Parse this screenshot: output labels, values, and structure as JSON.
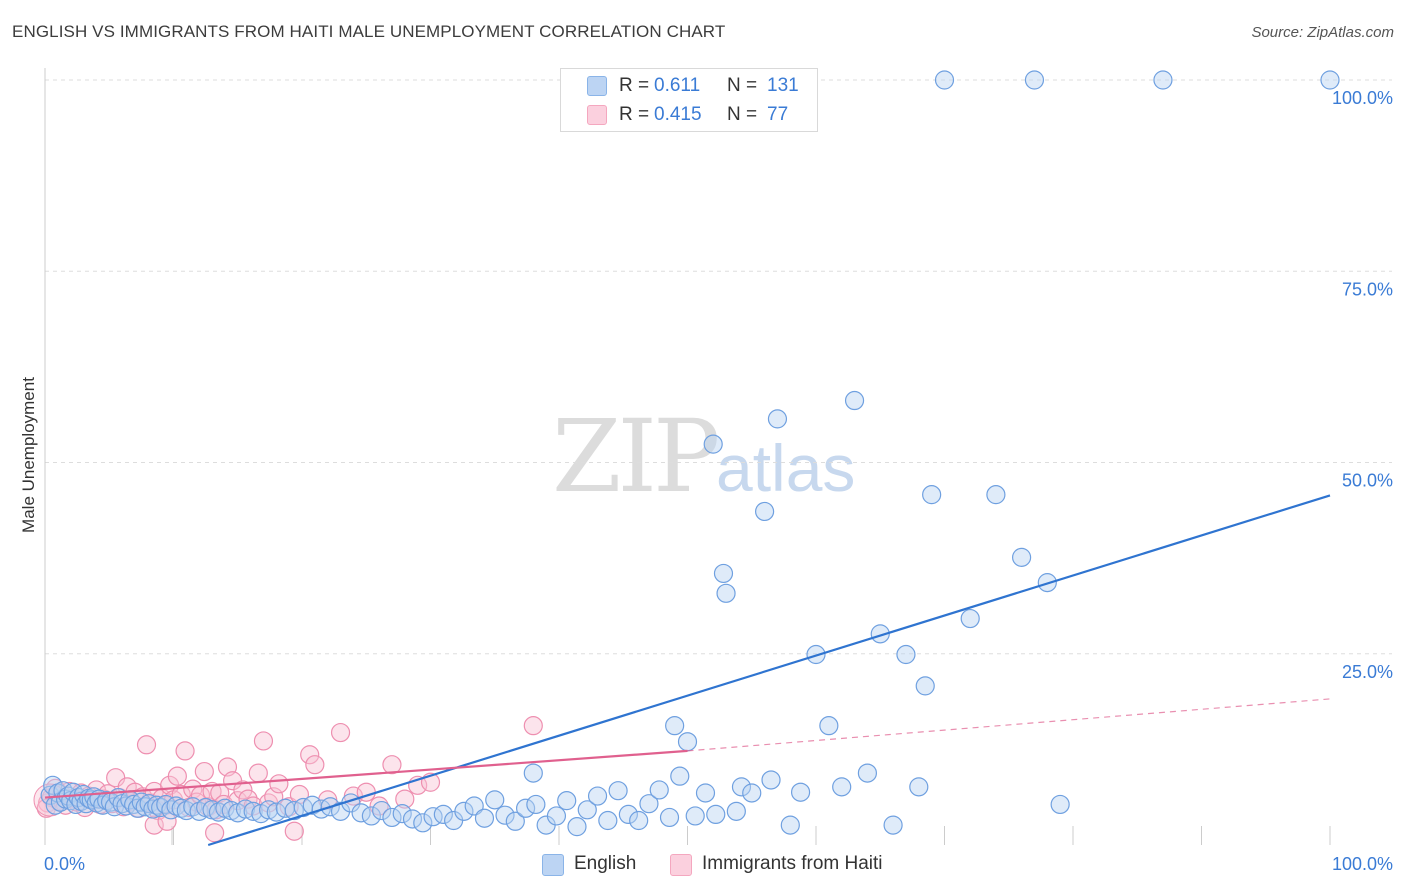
{
  "title": "ENGLISH VS IMMIGRANTS FROM HAITI MALE UNEMPLOYMENT CORRELATION CHART",
  "source": "Source: ZipAtlas.com",
  "watermark": {
    "zip": "ZIP",
    "atlas": "atlas"
  },
  "legend": {
    "english": {
      "r_label": "R =",
      "r_value": "0.611",
      "n_label": "N =",
      "n_value": "131",
      "color": "#8ab4e8"
    },
    "haiti": {
      "r_label": "R =",
      "r_value": "0.415",
      "n_label": "N =",
      "n_value": "77",
      "color": "#f4a7bf"
    }
  },
  "bottom_legend": {
    "english": "English",
    "haiti": "Immigrants from Haiti"
  },
  "chart_data": {
    "type": "scatter",
    "title": "ENGLISH VS IMMIGRANTS FROM HAITI MALE UNEMPLOYMENT CORRELATION CHART",
    "xlabel": "",
    "ylabel": "Male Unemployment",
    "xlim": [
      0,
      100
    ],
    "ylim": [
      0,
      100
    ],
    "x_tick_labels": [
      "0.0%",
      "100.0%"
    ],
    "y_ticks": [
      25,
      50,
      75,
      100
    ],
    "y_tick_labels": [
      "25.0%",
      "50.0%",
      "75.0%",
      "100.0%"
    ],
    "grid": true,
    "legend_position": "top-center",
    "series": [
      {
        "name": "English",
        "color": "#8ab4e8",
        "line_color": "#2f74d0",
        "trend": {
          "x": [
            12.7,
            100
          ],
          "y": [
            -6.0,
            45.7
          ]
        },
        "points": [
          [
            0.4,
            6.5
          ],
          [
            0.6,
            7.8
          ],
          [
            0.8,
            5.2
          ],
          [
            1.0,
            6.8
          ],
          [
            1.2,
            5.6
          ],
          [
            1.4,
            7.1
          ],
          [
            1.6,
            6.0
          ],
          [
            1.8,
            6.4
          ],
          [
            2.0,
            5.8
          ],
          [
            2.2,
            6.9
          ],
          [
            2.4,
            5.3
          ],
          [
            2.6,
            6.2
          ],
          [
            2.8,
            5.7
          ],
          [
            3.0,
            6.6
          ],
          [
            3.2,
            5.4
          ],
          [
            3.4,
            6.1
          ],
          [
            3.6,
            5.9
          ],
          [
            3.8,
            6.3
          ],
          [
            4.0,
            5.5
          ],
          [
            4.2,
            6.0
          ],
          [
            4.5,
            5.2
          ],
          [
            4.8,
            5.8
          ],
          [
            5.1,
            5.6
          ],
          [
            5.4,
            5.0
          ],
          [
            5.7,
            6.2
          ],
          [
            6.0,
            5.4
          ],
          [
            6.3,
            5.1
          ],
          [
            6.6,
            5.9
          ],
          [
            6.9,
            5.3
          ],
          [
            7.2,
            4.8
          ],
          [
            7.5,
            5.6
          ],
          [
            7.8,
            5.0
          ],
          [
            8.1,
            5.4
          ],
          [
            8.4,
            4.7
          ],
          [
            8.7,
            5.2
          ],
          [
            9.0,
            4.9
          ],
          [
            9.4,
            5.3
          ],
          [
            9.8,
            4.6
          ],
          [
            10.2,
            5.1
          ],
          [
            10.6,
            4.8
          ],
          [
            11.0,
            4.5
          ],
          [
            11.5,
            5.0
          ],
          [
            12.0,
            4.4
          ],
          [
            12.5,
            4.9
          ],
          [
            13.0,
            4.6
          ],
          [
            13.5,
            4.3
          ],
          [
            14.0,
            4.8
          ],
          [
            14.5,
            4.5
          ],
          [
            15.0,
            4.2
          ],
          [
            15.6,
            4.7
          ],
          [
            16.2,
            4.4
          ],
          [
            16.8,
            4.1
          ],
          [
            17.4,
            4.6
          ],
          [
            18.0,
            4.3
          ],
          [
            18.7,
            4.8
          ],
          [
            19.4,
            4.5
          ],
          [
            20.1,
            4.9
          ],
          [
            20.8,
            5.2
          ],
          [
            21.5,
            4.7
          ],
          [
            22.2,
            5.0
          ],
          [
            23.0,
            4.4
          ],
          [
            23.8,
            5.5
          ],
          [
            24.6,
            4.2
          ],
          [
            25.4,
            3.8
          ],
          [
            26.2,
            4.5
          ],
          [
            27.0,
            3.6
          ],
          [
            27.8,
            4.1
          ],
          [
            28.6,
            3.4
          ],
          [
            29.4,
            2.9
          ],
          [
            30.2,
            3.7
          ],
          [
            31.0,
            4.0
          ],
          [
            31.8,
            3.2
          ],
          [
            32.6,
            4.4
          ],
          [
            33.4,
            5.1
          ],
          [
            34.2,
            3.5
          ],
          [
            35.0,
            5.9
          ],
          [
            35.8,
            3.9
          ],
          [
            36.6,
            3.1
          ],
          [
            37.4,
            4.8
          ],
          [
            38.2,
            5.3
          ],
          [
            38.0,
            9.4
          ],
          [
            39.0,
            2.6
          ],
          [
            39.8,
            3.8
          ],
          [
            40.6,
            5.8
          ],
          [
            41.4,
            2.4
          ],
          [
            42.2,
            4.6
          ],
          [
            43.0,
            6.4
          ],
          [
            43.8,
            3.2
          ],
          [
            44.6,
            7.1
          ],
          [
            45.4,
            4.0
          ],
          [
            46.2,
            3.2
          ],
          [
            47.0,
            5.4
          ],
          [
            47.8,
            7.2
          ],
          [
            48.6,
            3.6
          ],
          [
            49.0,
            15.6
          ],
          [
            49.4,
            9.0
          ],
          [
            50.0,
            13.5
          ],
          [
            50.6,
            3.8
          ],
          [
            51.4,
            6.8
          ],
          [
            52.0,
            52.4
          ],
          [
            52.2,
            4.0
          ],
          [
            52.8,
            35.5
          ],
          [
            53.0,
            32.9
          ],
          [
            53.8,
            4.4
          ],
          [
            54.2,
            7.6
          ],
          [
            55.0,
            6.8
          ],
          [
            56.0,
            43.6
          ],
          [
            56.5,
            8.5
          ],
          [
            57.0,
            55.7
          ],
          [
            58.0,
            2.6
          ],
          [
            58.8,
            6.9
          ],
          [
            60.0,
            24.9
          ],
          [
            61.0,
            15.6
          ],
          [
            62.0,
            7.6
          ],
          [
            63.0,
            58.1
          ],
          [
            64.0,
            9.4
          ],
          [
            65.0,
            27.6
          ],
          [
            66.0,
            2.6
          ],
          [
            67.0,
            24.9
          ],
          [
            68.0,
            7.6
          ],
          [
            68.5,
            20.8
          ],
          [
            69.0,
            45.8
          ],
          [
            70.0,
            100.0
          ],
          [
            72.0,
            29.6
          ],
          [
            74.0,
            45.8
          ],
          [
            76.0,
            37.6
          ],
          [
            77.0,
            100.0
          ],
          [
            78.0,
            34.3
          ],
          [
            79.0,
            5.3
          ],
          [
            87.0,
            100.0
          ],
          [
            100.0,
            100.0
          ]
        ]
      },
      {
        "name": "Immigrants from Haiti",
        "color": "#f4a7bf",
        "line_color": "#e0608e",
        "trend": {
          "x": [
            0,
            50
          ],
          "y": [
            6.2,
            12.3
          ]
        },
        "trend_dashed": {
          "x": [
            50,
            100
          ],
          "y": [
            12.3,
            19.1
          ]
        },
        "points": [
          [
            0.2,
            5.5
          ],
          [
            0.5,
            6.2
          ],
          [
            0.8,
            7.4
          ],
          [
            1.0,
            5.8
          ],
          [
            1.3,
            6.6
          ],
          [
            1.6,
            5.2
          ],
          [
            1.9,
            7.0
          ],
          [
            2.2,
            6.1
          ],
          [
            2.5,
            5.6
          ],
          [
            2.8,
            6.8
          ],
          [
            3.1,
            4.9
          ],
          [
            3.4,
            6.4
          ],
          [
            3.7,
            5.9
          ],
          [
            4.0,
            7.2
          ],
          [
            4.3,
            5.3
          ],
          [
            4.6,
            6.0
          ],
          [
            4.9,
            6.7
          ],
          [
            5.2,
            5.4
          ],
          [
            5.5,
            8.8
          ],
          [
            5.8,
            6.2
          ],
          [
            6.1,
            5.0
          ],
          [
            6.4,
            7.6
          ],
          [
            6.7,
            5.7
          ],
          [
            7.0,
            6.9
          ],
          [
            7.3,
            4.8
          ],
          [
            7.6,
            6.3
          ],
          [
            7.9,
            13.1
          ],
          [
            8.2,
            5.5
          ],
          [
            8.5,
            7.0
          ],
          [
            8.8,
            4.5
          ],
          [
            9.1,
            6.1
          ],
          [
            9.4,
            5.2
          ],
          [
            9.7,
            7.8
          ],
          [
            10.0,
            5.9
          ],
          [
            10.3,
            9.0
          ],
          [
            10.6,
            6.6
          ],
          [
            10.9,
            12.3
          ],
          [
            11.2,
            4.9
          ],
          [
            11.5,
            7.3
          ],
          [
            11.8,
            5.6
          ],
          [
            12.1,
            6.5
          ],
          [
            12.4,
            9.6
          ],
          [
            12.7,
            5.0
          ],
          [
            13.0,
            7.0
          ],
          [
            13.3,
            4.6
          ],
          [
            13.6,
            6.8
          ],
          [
            13.9,
            5.3
          ],
          [
            14.2,
            10.2
          ],
          [
            14.6,
            8.4
          ],
          [
            15.0,
            5.8
          ],
          [
            15.4,
            7.2
          ],
          [
            15.8,
            6.0
          ],
          [
            16.2,
            5.1
          ],
          [
            16.6,
            9.4
          ],
          [
            17.0,
            13.6
          ],
          [
            17.4,
            5.5
          ],
          [
            17.8,
            6.3
          ],
          [
            18.2,
            8.0
          ],
          [
            19.0,
            5.0
          ],
          [
            19.8,
            6.6
          ],
          [
            20.6,
            11.8
          ],
          [
            21.0,
            10.5
          ],
          [
            22.0,
            5.9
          ],
          [
            23.0,
            14.7
          ],
          [
            24.0,
            6.4
          ],
          [
            25.0,
            6.9
          ],
          [
            26.0,
            5.1
          ],
          [
            27.0,
            10.5
          ],
          [
            28.0,
            6.0
          ],
          [
            29.0,
            7.8
          ],
          [
            30.0,
            8.2
          ],
          [
            8.5,
            2.6
          ],
          [
            9.5,
            3.1
          ],
          [
            13.2,
            1.6
          ],
          [
            19.4,
            1.8
          ],
          [
            38.0,
            15.6
          ],
          [
            0.1,
            4.8
          ]
        ]
      }
    ]
  }
}
